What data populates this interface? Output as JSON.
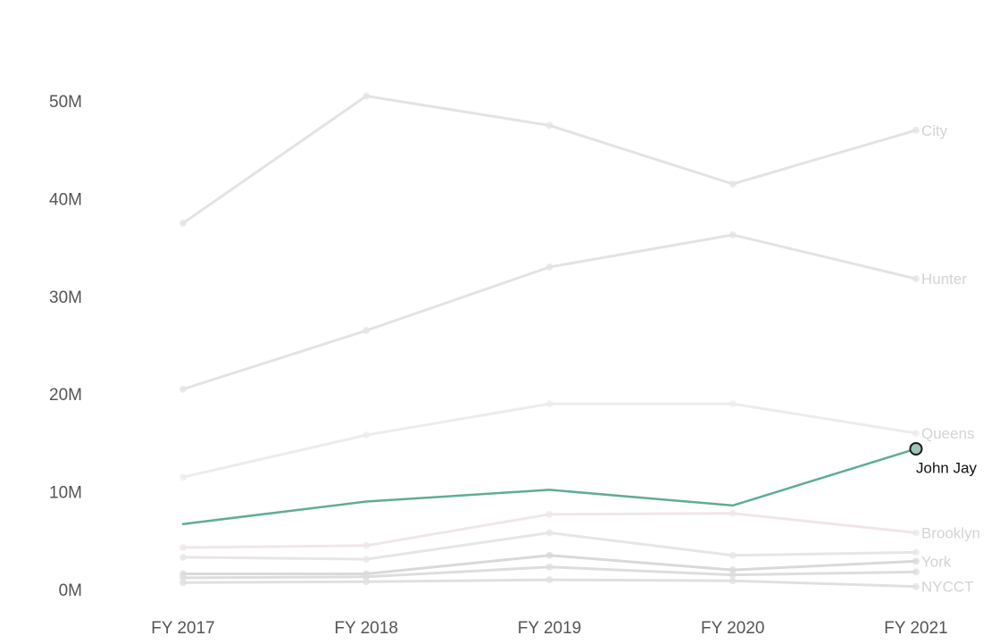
{
  "chart_data": {
    "type": "line",
    "title": "",
    "xlabel": "",
    "ylabel": "",
    "categories": [
      "FY 2017",
      "FY 2018",
      "FY 2019",
      "FY 2020",
      "FY 2021"
    ],
    "ylim": [
      0,
      55000000
    ],
    "y_ticks": [
      0,
      10000000,
      20000000,
      30000000,
      40000000,
      50000000
    ],
    "y_tick_labels": [
      "0M",
      "10M",
      "20M",
      "30M",
      "40M",
      "50M"
    ],
    "grid": false,
    "legend": "none",
    "series": [
      {
        "name": "City",
        "values": [
          37500000,
          50500000,
          47500000,
          41500000,
          47000000
        ],
        "highlighted": false,
        "color": "#e3e3e3"
      },
      {
        "name": "Hunter",
        "values": [
          20500000,
          26500000,
          33000000,
          36300000,
          31800000
        ],
        "highlighted": false,
        "color": "#e3e3e3"
      },
      {
        "name": "Queens",
        "values": [
          11500000,
          15800000,
          19000000,
          19000000,
          16000000
        ],
        "highlighted": false,
        "color": "#ececec"
      },
      {
        "name": "John Jay",
        "values": [
          6700000,
          9000000,
          10200000,
          8600000,
          14400000
        ],
        "highlighted": true,
        "color": "#5fae8f"
      },
      {
        "name": "Brooklyn",
        "values": [
          4300000,
          4500000,
          7700000,
          7800000,
          5800000
        ],
        "highlighted": false,
        "color": "#f0e6e8"
      },
      {
        "name": "",
        "values": [
          3300000,
          3100000,
          5800000,
          3500000,
          3800000
        ],
        "highlighted": false,
        "color": "#e6e6e6"
      },
      {
        "name": "York",
        "values": [
          1600000,
          1600000,
          3500000,
          2000000,
          2900000
        ],
        "highlighted": false,
        "color": "#d9d9d9"
      },
      {
        "name": "",
        "values": [
          1200000,
          1300000,
          2300000,
          1500000,
          1800000
        ],
        "highlighted": false,
        "color": "#dddddd"
      },
      {
        "name": "NYCCT",
        "values": [
          700000,
          800000,
          1000000,
          900000,
          300000
        ],
        "highlighted": false,
        "color": "#e0e0e0"
      }
    ]
  }
}
